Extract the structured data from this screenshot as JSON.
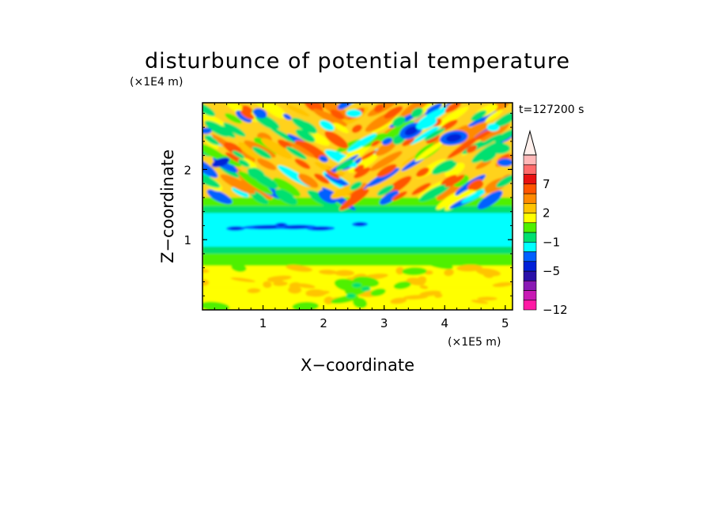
{
  "chart_data": {
    "type": "heatmap",
    "title": "disturbunce of potential temperature",
    "xlabel": "X−coordinate",
    "ylabel": "Z−coordinate",
    "x_scale_label": "(×1E5 m)",
    "y_scale_label": "(×1E4 m)",
    "time_label": "t=127200 s",
    "xlim": [
      0,
      5.12
    ],
    "ylim": [
      0,
      2.95
    ],
    "x_ticks": [
      {
        "value": 1,
        "label": "1"
      },
      {
        "value": 2,
        "label": "2"
      },
      {
        "value": 3,
        "label": "3"
      },
      {
        "value": 4,
        "label": "4"
      },
      {
        "value": 5,
        "label": "5"
      }
    ],
    "y_ticks": [
      {
        "value": 1,
        "label": "1"
      },
      {
        "value": 2,
        "label": "2"
      }
    ],
    "colorbar": {
      "levels": [
        -12,
        -11,
        -9,
        -7,
        -5,
        -4,
        -3,
        -1,
        0,
        1,
        2,
        3,
        5,
        7,
        8,
        9
      ],
      "colors": [
        "#ff1aa4",
        "#c81ab4",
        "#8a1ab4",
        "#2a10a8",
        "#0020d8",
        "#0060ff",
        "#00ffff",
        "#00e070",
        "#50f000",
        "#ffff00",
        "#ffc400",
        "#ff8a00",
        "#ff5500",
        "#e81010",
        "#ff6b6b",
        "#ffb8b8"
      ],
      "extend_top_color": "#fff0ec",
      "labels": [
        {
          "value": -12,
          "label": "−12"
        },
        {
          "value": -5,
          "label": "−5"
        },
        {
          "value": -1,
          "label": "−1"
        },
        {
          "value": 2,
          "label": "2"
        },
        {
          "value": 7,
          "label": "7"
        }
      ]
    },
    "description_layers": [
      {
        "z_from": 0.0,
        "z_to": 0.3,
        "range": "0 to 2",
        "dominant": "yellow with green patches"
      },
      {
        "z_from": 0.3,
        "z_to": 0.65,
        "range": "1 to 2",
        "dominant": "yellow"
      },
      {
        "z_from": 0.65,
        "z_to": 0.85,
        "range": "-1 to 1",
        "dominant": "green"
      },
      {
        "z_from": 0.85,
        "z_to": 1.4,
        "range": "-3 to -1",
        "dominant": "cyan with blue streaks near z=1.2"
      },
      {
        "z_from": 1.4,
        "z_to": 2.95,
        "range": "-5 to 5",
        "dominant": "oscillating orange, yellow, green, blue bands"
      }
    ]
  }
}
